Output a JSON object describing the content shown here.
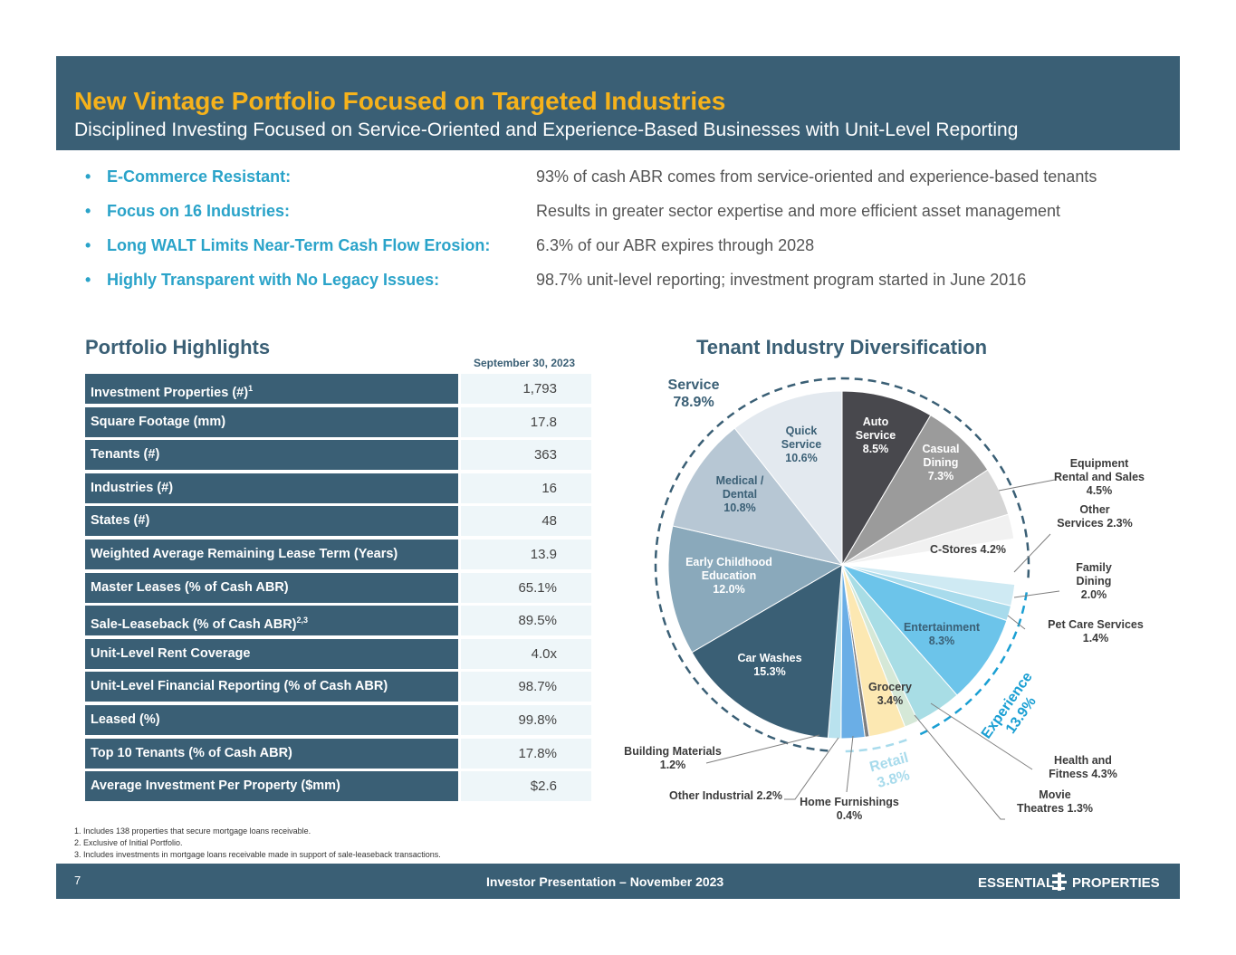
{
  "header": {
    "title": "New Vintage Portfolio Focused on Targeted Industries",
    "subtitle": "Disciplined Investing Focused on Service-Oriented and Experience-Based Businesses with Unit-Level Reporting"
  },
  "bullets": [
    {
      "label": "E-Commerce Resistant:",
      "text": "93% of cash ABR comes from service-oriented and experience-based tenants"
    },
    {
      "label": "Focus on 16 Industries:",
      "text": "Results in greater sector expertise and more efficient asset management"
    },
    {
      "label": "Long WALT Limits Near-Term Cash Flow Erosion:",
      "text": "6.3% of our ABR expires through 2028"
    },
    {
      "label": "Highly Transparent with No Legacy Issues:",
      "text": "98.7% unit-level reporting; investment program started in June 2016"
    }
  ],
  "highlights": {
    "title": "Portfolio Highlights",
    "as_of": "September 30, 2023",
    "rows": [
      {
        "label": "Investment Properties (#)",
        "sup": "1",
        "value": "1,793"
      },
      {
        "label": "Square Footage (mm)",
        "sup": "",
        "value": "17.8"
      },
      {
        "label": "Tenants (#)",
        "sup": "",
        "value": "363"
      },
      {
        "label": "Industries (#)",
        "sup": "",
        "value": "16"
      },
      {
        "label": "States (#)",
        "sup": "",
        "value": "48"
      },
      {
        "label": "Weighted Average Remaining Lease Term (Years)",
        "sup": "",
        "value": "13.9"
      },
      {
        "label": "Master Leases (% of Cash ABR)",
        "sup": "",
        "value": "65.1%"
      },
      {
        "label": "Sale-Leaseback (% of Cash ABR)",
        "sup": "2,3",
        "value": "89.5%"
      },
      {
        "label": "Unit-Level Rent Coverage",
        "sup": "",
        "value": "4.0x"
      },
      {
        "label": "Unit-Level Financial Reporting (% of Cash ABR)",
        "sup": "",
        "value": "98.7%"
      },
      {
        "label": "Leased (%)",
        "sup": "",
        "value": "99.8%"
      },
      {
        "label": "Top 10 Tenants (% of Cash ABR)",
        "sup": "",
        "value": "17.8%"
      },
      {
        "label": "Average Investment Per Property ($mm)",
        "sup": "",
        "value": "$2.6"
      }
    ]
  },
  "chart_data": {
    "type": "pie",
    "title": "Tenant Industry Diversification",
    "groups": [
      {
        "name": "Service",
        "value": "78.9%"
      },
      {
        "name": "Experience",
        "value": "13.9%"
      },
      {
        "name": "Retail",
        "value": "3.8%"
      }
    ],
    "slices": [
      {
        "name": "Auto Service",
        "value": 8.5,
        "display": "Auto\nService\n8.5%",
        "color": "#48484d"
      },
      {
        "name": "Casual Dining",
        "value": 7.3,
        "display": "Casual\nDining\n7.3%",
        "color": "#9b9b9b"
      },
      {
        "name": "Equipment Rental and Sales",
        "value": 4.5,
        "display": "Equipment\nRental and Sales\n4.5%",
        "color": "#d5d5d5"
      },
      {
        "name": "Other Services",
        "value": 2.3,
        "display": "Other\nServices 2.3%",
        "color": "#f1f1f1"
      },
      {
        "name": "C-Stores",
        "value": 4.2,
        "display": "C-Stores 4.2%",
        "color": "#ffffff"
      },
      {
        "name": "Family Dining",
        "value": 2.0,
        "display": "Family\nDining\n2.0%",
        "color": "#cfeaf3"
      },
      {
        "name": "Pet Care Services",
        "value": 1.4,
        "display": "Pet Care Services\n1.4%",
        "color": "#a8dbec"
      },
      {
        "name": "Entertainment",
        "value": 8.3,
        "display": "Entertainment\n8.3%",
        "color": "#6cc4ea"
      },
      {
        "name": "Health and Fitness",
        "value": 4.3,
        "display": "Health and\nFitness 4.3%",
        "color": "#a8dde5"
      },
      {
        "name": "Movie Theatres",
        "value": 1.3,
        "display": "Movie\nTheatres 1.3%",
        "color": "#d5e8d7"
      },
      {
        "name": "Grocery",
        "value": 3.4,
        "display": "Grocery\n3.4%",
        "color": "#fce8b2"
      },
      {
        "name": "Home Furnishings",
        "value": 0.4,
        "display": "Home Furnishings\n0.4%",
        "color": "#7f7f7f"
      },
      {
        "name": "Other Industrial",
        "value": 2.2,
        "display": "Other Industrial 2.2%",
        "color": "#6aaee6"
      },
      {
        "name": "Building Materials",
        "value": 1.2,
        "display": "Building Materials\n1.2%",
        "color": "#b9e2ee"
      },
      {
        "name": "Car Washes",
        "value": 15.3,
        "display": "Car Washes\n15.3%",
        "color": "#3a5f75"
      },
      {
        "name": "Early Childhood Education",
        "value": 12.0,
        "display": "Early Childhood\nEducation\n12.0%",
        "color": "#8aa9bb"
      },
      {
        "name": "Medical / Dental",
        "value": 10.8,
        "display": "Medical /\nDental\n10.8%",
        "color": "#b7c7d4"
      },
      {
        "name": "Quick Service",
        "value": 10.6,
        "display": "Quick\nService\n10.6%",
        "color": "#e3e9ef"
      }
    ]
  },
  "footnotes": [
    "1.  Includes 138 properties that secure mortgage loans receivable.",
    "2.  Exclusive of Initial Portfolio.",
    "3.  Includes investments in mortgage loans receivable made in support of sale-leaseback transactions."
  ],
  "footer": {
    "page": "7",
    "presentation": "Investor Presentation – November 2023",
    "logo_left": "ESSENTIAL",
    "logo_right": "PROPERTIES"
  },
  "colors": {
    "header_bg": "#3a5f75",
    "title": "#f6b21b",
    "accent": "#2aa3c9"
  }
}
